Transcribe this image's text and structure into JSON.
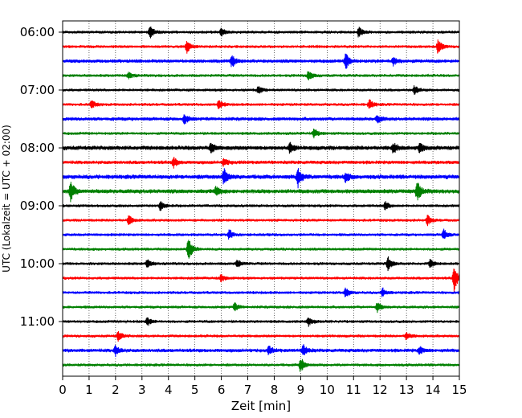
{
  "chart_data": {
    "type": "line",
    "subtype": "helicorder",
    "xlabel": "Zeit  [min]",
    "ylabel": "UTC (Lokalzeit = UTC + 02:00)",
    "xlim": [
      0,
      15
    ],
    "x_ticks": [
      0,
      1,
      2,
      3,
      4,
      5,
      6,
      7,
      8,
      9,
      10,
      11,
      12,
      13,
      14,
      15
    ],
    "y_tick_labels": [
      "06:00",
      "07:00",
      "08:00",
      "09:00",
      "10:00",
      "11:00"
    ],
    "y_tick_rows": [
      0,
      4,
      8,
      12,
      16,
      20
    ],
    "grid": "vertical dotted lines at each minute",
    "row_interval_minutes": 15,
    "row_colors": [
      "#000000",
      "#ff0000",
      "#0000ff",
      "#008000"
    ],
    "rows": [
      {
        "start": "06:00",
        "amplitude": 2,
        "events": [
          {
            "t": 3.3,
            "a": 8
          },
          {
            "t": 6.0,
            "a": 5
          },
          {
            "t": 11.2,
            "a": 6
          }
        ]
      },
      {
        "start": "06:15",
        "amplitude": 2,
        "events": [
          {
            "t": 4.7,
            "a": 8
          },
          {
            "t": 14.2,
            "a": 9
          }
        ]
      },
      {
        "start": "06:30",
        "amplitude": 2.5,
        "events": [
          {
            "t": 6.4,
            "a": 7
          },
          {
            "t": 10.7,
            "a": 11
          },
          {
            "t": 12.5,
            "a": 5
          }
        ]
      },
      {
        "start": "06:45",
        "amplitude": 2,
        "events": [
          {
            "t": 9.3,
            "a": 7
          },
          {
            "t": 2.5,
            "a": 4
          }
        ]
      },
      {
        "start": "07:00",
        "amplitude": 2,
        "events": [
          {
            "t": 7.4,
            "a": 5
          },
          {
            "t": 13.3,
            "a": 5
          }
        ]
      },
      {
        "start": "07:15",
        "amplitude": 2,
        "events": [
          {
            "t": 1.1,
            "a": 5
          },
          {
            "t": 5.9,
            "a": 6
          },
          {
            "t": 11.6,
            "a": 6
          }
        ]
      },
      {
        "start": "07:30",
        "amplitude": 2.5,
        "events": [
          {
            "t": 4.6,
            "a": 6
          },
          {
            "t": 11.9,
            "a": 5
          }
        ]
      },
      {
        "start": "07:45",
        "amplitude": 2,
        "events": [
          {
            "t": 9.5,
            "a": 6
          }
        ]
      },
      {
        "start": "08:00",
        "amplitude": 3,
        "events": [
          {
            "t": 5.6,
            "a": 6
          },
          {
            "t": 8.6,
            "a": 6
          },
          {
            "t": 12.5,
            "a": 6
          },
          {
            "t": 13.5,
            "a": 6
          }
        ]
      },
      {
        "start": "08:15",
        "amplitude": 2.5,
        "events": [
          {
            "t": 4.2,
            "a": 6
          },
          {
            "t": 6.1,
            "a": 5
          }
        ]
      },
      {
        "start": "08:30",
        "amplitude": 3,
        "events": [
          {
            "t": 6.1,
            "a": 11
          },
          {
            "t": 8.9,
            "a": 12
          },
          {
            "t": 10.7,
            "a": 6
          }
        ]
      },
      {
        "start": "08:45",
        "amplitude": 3,
        "events": [
          {
            "t": 0.3,
            "a": 13
          },
          {
            "t": 13.4,
            "a": 12
          },
          {
            "t": 5.8,
            "a": 5
          }
        ]
      },
      {
        "start": "09:00",
        "amplitude": 2,
        "events": [
          {
            "t": 3.7,
            "a": 6
          },
          {
            "t": 12.2,
            "a": 5
          }
        ]
      },
      {
        "start": "09:15",
        "amplitude": 2,
        "events": [
          {
            "t": 2.5,
            "a": 6
          },
          {
            "t": 13.8,
            "a": 6
          }
        ]
      },
      {
        "start": "09:30",
        "amplitude": 2,
        "events": [
          {
            "t": 6.3,
            "a": 6
          },
          {
            "t": 14.4,
            "a": 7
          }
        ]
      },
      {
        "start": "09:45",
        "amplitude": 2,
        "events": [
          {
            "t": 4.75,
            "a": 15
          }
        ]
      },
      {
        "start": "10:00",
        "amplitude": 2,
        "events": [
          {
            "t": 3.2,
            "a": 5
          },
          {
            "t": 6.6,
            "a": 5
          },
          {
            "t": 12.3,
            "a": 9
          },
          {
            "t": 13.9,
            "a": 5
          }
        ]
      },
      {
        "start": "10:15",
        "amplitude": 2,
        "events": [
          {
            "t": 6.0,
            "a": 5
          },
          {
            "t": 14.8,
            "a": 16
          }
        ]
      },
      {
        "start": "10:30",
        "amplitude": 2,
        "events": [
          {
            "t": 10.7,
            "a": 6
          },
          {
            "t": 12.1,
            "a": 5
          }
        ]
      },
      {
        "start": "10:45",
        "amplitude": 2,
        "events": [
          {
            "t": 6.5,
            "a": 5
          },
          {
            "t": 11.9,
            "a": 6
          }
        ]
      },
      {
        "start": "11:00",
        "amplitude": 2,
        "events": [
          {
            "t": 3.2,
            "a": 5
          },
          {
            "t": 9.3,
            "a": 5
          }
        ]
      },
      {
        "start": "11:15",
        "amplitude": 2,
        "events": [
          {
            "t": 2.1,
            "a": 6
          },
          {
            "t": 13.0,
            "a": 5
          }
        ]
      },
      {
        "start": "11:30",
        "amplitude": 2.5,
        "events": [
          {
            "t": 2.0,
            "a": 6
          },
          {
            "t": 7.8,
            "a": 5
          },
          {
            "t": 9.1,
            "a": 7
          },
          {
            "t": 13.5,
            "a": 5
          }
        ]
      },
      {
        "start": "11:45",
        "amplitude": 2,
        "events": [
          {
            "t": 9.0,
            "a": 9
          }
        ]
      }
    ]
  }
}
